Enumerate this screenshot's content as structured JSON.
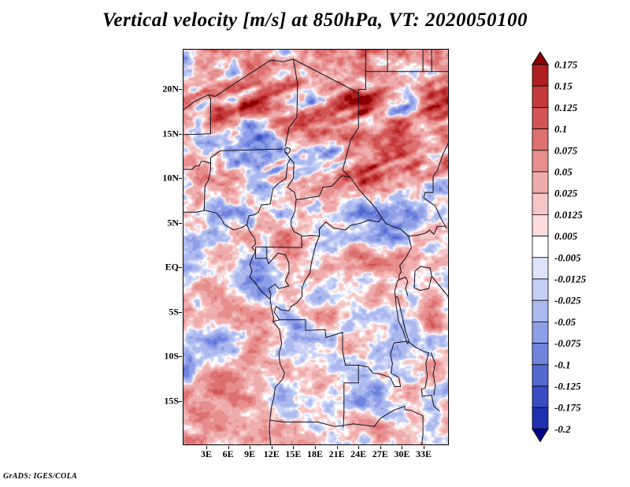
{
  "title": "Vertical velocity [m/s] at 850hPa, VT: 2020050100",
  "credit": "GrADS: IGES/COLA",
  "axes": {
    "lat_ticks": [
      {
        "label": "20N",
        "value": 20
      },
      {
        "label": "15N",
        "value": 15
      },
      {
        "label": "10N",
        "value": 10
      },
      {
        "label": "5N",
        "value": 5
      },
      {
        "label": "EQ",
        "value": 0
      },
      {
        "label": "5S",
        "value": -5
      },
      {
        "label": "10S",
        "value": -10
      },
      {
        "label": "15S",
        "value": -15
      }
    ],
    "lon_ticks": [
      {
        "label": "3E",
        "value": 3
      },
      {
        "label": "6E",
        "value": 6
      },
      {
        "label": "9E",
        "value": 9
      },
      {
        "label": "12E",
        "value": 12
      },
      {
        "label": "15E",
        "value": 15
      },
      {
        "label": "18E",
        "value": 18
      },
      {
        "label": "21E",
        "value": 21
      },
      {
        "label": "24E",
        "value": 24
      },
      {
        "label": "27E",
        "value": 27
      },
      {
        "label": "30E",
        "value": 30
      },
      {
        "label": "33E",
        "value": 33
      }
    ]
  },
  "colorbar": {
    "labels": [
      "0.175",
      "0.15",
      "0.125",
      "0.1",
      "0.075",
      "0.05",
      "0.025",
      "0.0125",
      "0.005",
      "-0.005",
      "-0.0125",
      "-0.025",
      "-0.05",
      "-0.075",
      "-0.1",
      "-0.125",
      "-0.175",
      "-0.2"
    ]
  },
  "chart_data": {
    "type": "heatmap",
    "title": "Vertical velocity [m/s] at 850hPa, VT: 2020050100",
    "variable": "Vertical velocity",
    "units": "m/s",
    "pressure_level": "850hPa",
    "valid_time": "2020050100",
    "region": "Central Africa",
    "xlabel": "longitude",
    "ylabel": "latitude",
    "lon_range": [
      -0.3,
      36.5
    ],
    "lat_range": [
      -20,
      24.5
    ],
    "lon_tick_values": [
      3,
      6,
      9,
      12,
      15,
      18,
      21,
      24,
      27,
      30,
      33
    ],
    "lat_tick_values": [
      20,
      15,
      10,
      5,
      0,
      -5,
      -10,
      -15
    ],
    "contour_levels": [
      -0.2,
      -0.175,
      -0.125,
      -0.1,
      -0.075,
      -0.05,
      -0.025,
      -0.0125,
      -0.005,
      0.005,
      0.0125,
      0.025,
      0.05,
      0.075,
      0.1,
      0.125,
      0.15,
      0.175
    ],
    "palette_ascending": [
      "#00008b",
      "#1f30b0",
      "#3a4cc4",
      "#5468d2",
      "#7083dd",
      "#8e9ee7",
      "#acb9ef",
      "#c6cff6",
      "#dde3fb",
      "#ffffff",
      "#fbdddd",
      "#f6c6c6",
      "#efacac",
      "#e78e8e",
      "#dd7070",
      "#d25454",
      "#c43a3a",
      "#b01f1f",
      "#8b0000"
    ],
    "legend_position": "right",
    "grid": false,
    "overlay": "African country borders and lakes",
    "field_description": "Fine-grained alternating updraft (red) and downdraft (blue) cells over Central Africa; strongest positive (dark red) filaments concentrated along 10N-20N, weaker pale structures south of the equator."
  }
}
